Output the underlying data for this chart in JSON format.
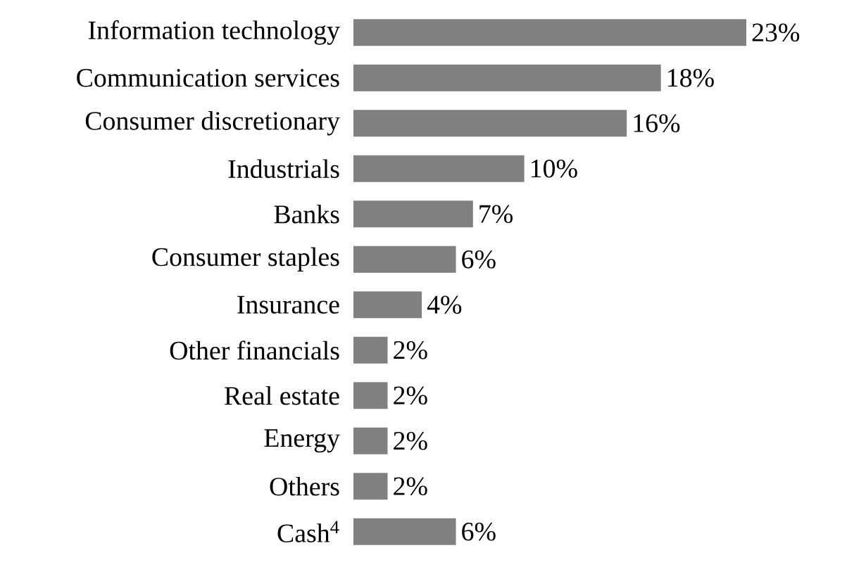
{
  "chart_data": {
    "type": "bar",
    "orientation": "horizontal",
    "categories": [
      "Information technology",
      "Communication services",
      "Consumer discretionary",
      "Industrials",
      "Banks",
      "Consumer staples",
      "Insurance",
      "Other financials",
      "Real estate",
      "Energy",
      "Others",
      "Cash$^{4}$"
    ],
    "values": [
      23,
      18,
      16,
      10,
      7,
      6,
      4,
      2,
      2,
      2,
      2,
      6
    ],
    "value_labels": [
      "23%",
      "18%",
      "16%",
      "10%",
      "7%",
      "6%",
      "4%",
      "2%",
      "2%",
      "2%",
      "2%",
      "6%"
    ],
    "color": "#808080"
  }
}
